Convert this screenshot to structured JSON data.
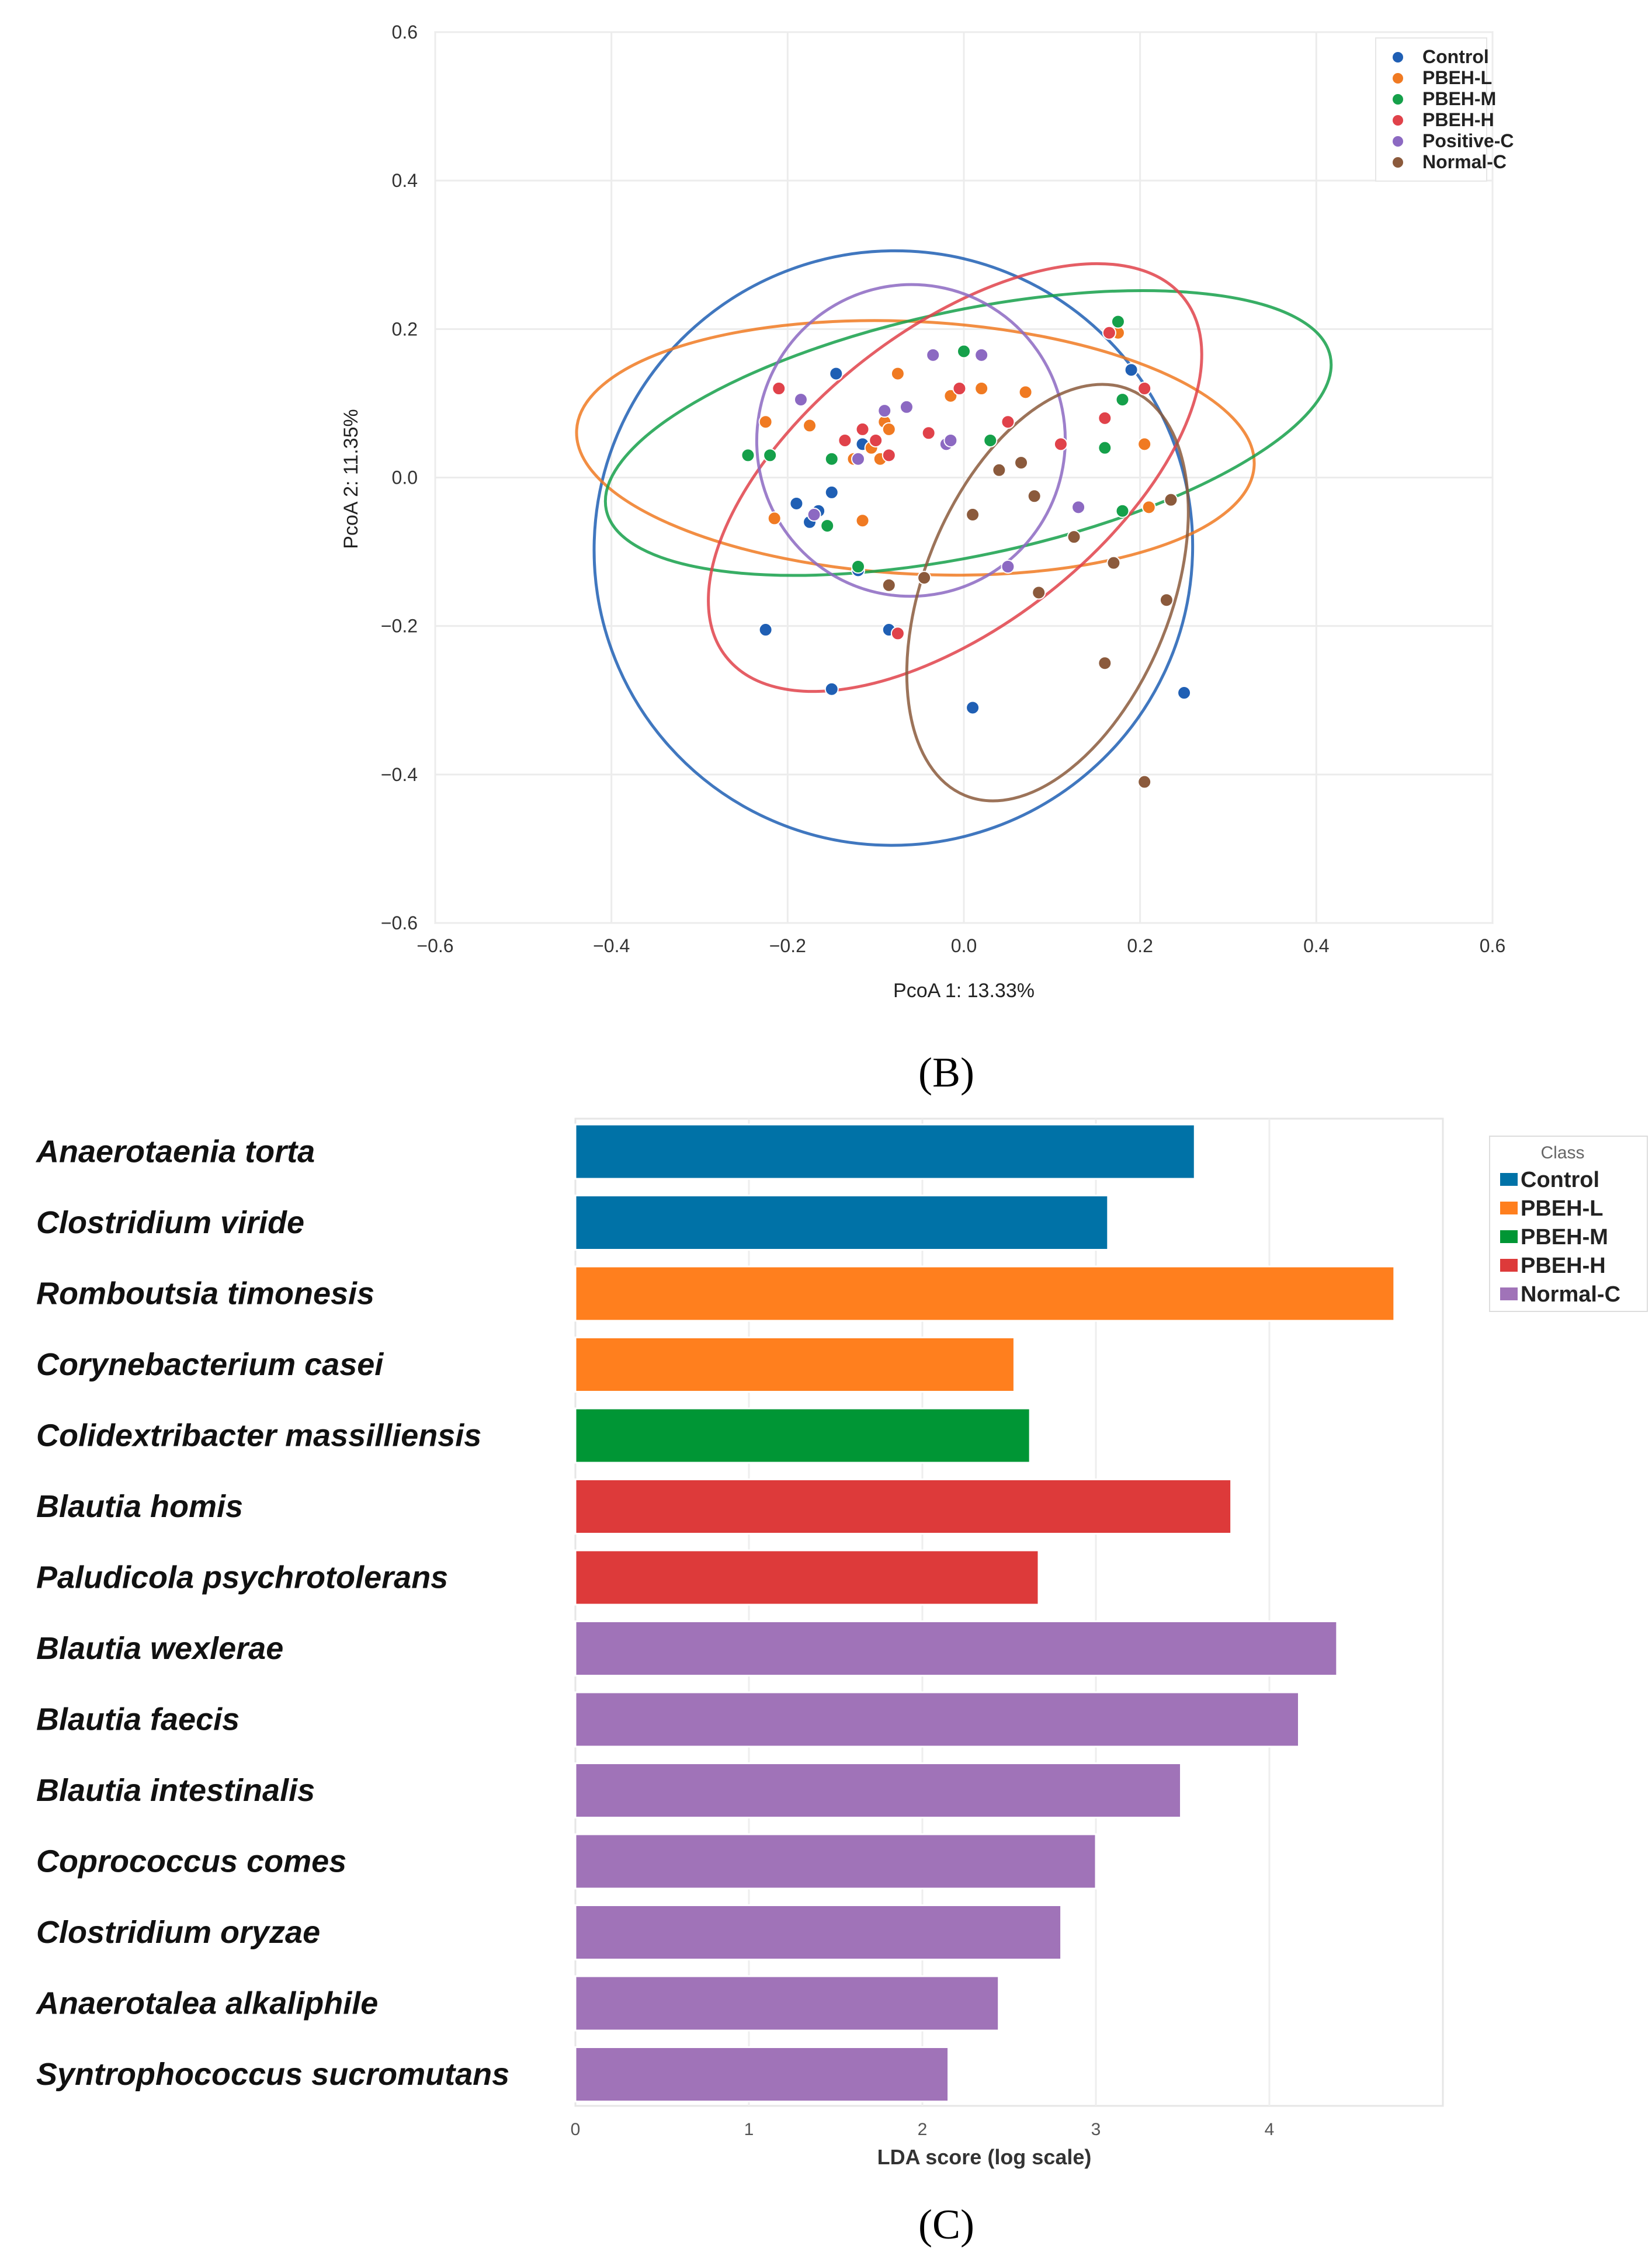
{
  "panel_b": {
    "caption": "(B)",
    "chart_data": {
      "type": "scatter",
      "xlabel": "PcoA 1: 13.33%",
      "ylabel": "PcoA 2: 11.35%",
      "xlim": [
        -0.6,
        0.6
      ],
      "ylim": [
        -0.6,
        0.6
      ],
      "xticks": [
        -0.6,
        -0.4,
        -0.2,
        0.0,
        0.2,
        0.4,
        0.6
      ],
      "yticks": [
        -0.6,
        -0.4,
        -0.2,
        0.0,
        0.2,
        0.4,
        0.6
      ],
      "xtick_labels": [
        "−0.6",
        "−0.4",
        "−0.2",
        "0.0",
        "0.2",
        "0.4",
        "0.6"
      ],
      "ytick_labels": [
        "−0.6",
        "−0.4",
        "−0.2",
        "0.0",
        "0.2",
        "0.4",
        "0.6"
      ],
      "grid": true,
      "legend_position": "top-right",
      "series": [
        {
          "name": "Control",
          "color": "#1f5fb4",
          "points": [
            [
              -0.145,
              0.14
            ],
            [
              -0.115,
              0.045
            ],
            [
              -0.15,
              -0.02
            ],
            [
              -0.19,
              -0.035
            ],
            [
              -0.165,
              -0.045
            ],
            [
              -0.175,
              -0.06
            ],
            [
              -0.12,
              -0.125
            ],
            [
              -0.225,
              -0.205
            ],
            [
              -0.15,
              -0.285
            ],
            [
              -0.085,
              -0.205
            ],
            [
              0.01,
              -0.31
            ],
            [
              0.25,
              -0.29
            ],
            [
              0.19,
              0.145
            ]
          ],
          "ellipse": {
            "center": [
              -0.08,
              -0.095
            ],
            "semi_axes": [
              0.34,
              0.4
            ],
            "angle_deg": 20
          }
        },
        {
          "name": "PBEH-L",
          "color": "#f07a22",
          "points": [
            [
              -0.225,
              0.075
            ],
            [
              -0.175,
              0.07
            ],
            [
              -0.215,
              -0.055
            ],
            [
              -0.115,
              -0.058
            ],
            [
              -0.125,
              0.025
            ],
            [
              -0.105,
              0.04
            ],
            [
              -0.095,
              0.025
            ],
            [
              -0.09,
              0.075
            ],
            [
              -0.085,
              0.065
            ],
            [
              -0.075,
              0.14
            ],
            [
              -0.015,
              0.11
            ],
            [
              0.02,
              0.12
            ],
            [
              0.07,
              0.115
            ],
            [
              0.175,
              0.195
            ],
            [
              0.205,
              0.045
            ],
            [
              0.21,
              -0.04
            ]
          ],
          "ellipse": {
            "center": [
              -0.055,
              0.04
            ],
            "semi_axes": [
              0.385,
              0.17
            ],
            "angle_deg": -3
          }
        },
        {
          "name": "PBEH-M",
          "color": "#15a04a",
          "points": [
            [
              -0.245,
              0.03
            ],
            [
              -0.22,
              0.03
            ],
            [
              -0.15,
              0.025
            ],
            [
              -0.155,
              -0.065
            ],
            [
              -0.12,
              -0.12
            ],
            [
              0.0,
              0.17
            ],
            [
              0.03,
              0.05
            ],
            [
              0.165,
              0.195
            ],
            [
              0.175,
              0.21
            ],
            [
              0.18,
              0.105
            ],
            [
              0.16,
              0.04
            ],
            [
              0.18,
              -0.045
            ]
          ],
          "ellipse": {
            "center": [
              0.005,
              0.06
            ],
            "semi_axes": [
              0.42,
              0.165
            ],
            "angle_deg": 12
          }
        },
        {
          "name": "PBEH-H",
          "color": "#e0424a",
          "points": [
            [
              -0.21,
              0.12
            ],
            [
              -0.135,
              0.05
            ],
            [
              -0.115,
              0.065
            ],
            [
              -0.1,
              0.05
            ],
            [
              -0.075,
              -0.21
            ],
            [
              -0.04,
              0.06
            ],
            [
              -0.005,
              0.12
            ],
            [
              0.05,
              0.075
            ],
            [
              0.11,
              0.045
            ],
            [
              0.16,
              0.08
            ],
            [
              0.165,
              0.195
            ],
            [
              0.205,
              0.12
            ],
            [
              -0.085,
              0.03
            ]
          ],
          "ellipse": {
            "center": [
              -0.01,
              0.0
            ],
            "semi_axes": [
              0.33,
              0.2
            ],
            "angle_deg": 38
          }
        },
        {
          "name": "Positive-C",
          "color": "#8c69c2",
          "points": [
            [
              -0.185,
              0.105
            ],
            [
              -0.17,
              -0.05
            ],
            [
              -0.12,
              0.025
            ],
            [
              -0.09,
              0.09
            ],
            [
              -0.065,
              0.095
            ],
            [
              -0.035,
              0.165
            ],
            [
              -0.02,
              0.045
            ],
            [
              -0.015,
              0.05
            ],
            [
              0.02,
              0.165
            ],
            [
              0.05,
              -0.12
            ],
            [
              0.13,
              -0.04
            ]
          ],
          "ellipse": {
            "center": [
              -0.06,
              0.05
            ],
            "semi_axes": [
              0.175,
              0.21
            ],
            "angle_deg": -10
          }
        },
        {
          "name": "Normal-C",
          "color": "#8b5a3c",
          "points": [
            [
              -0.085,
              -0.145
            ],
            [
              -0.045,
              -0.135
            ],
            [
              0.01,
              -0.05
            ],
            [
              0.04,
              0.01
            ],
            [
              0.065,
              0.02
            ],
            [
              0.08,
              -0.025
            ],
            [
              0.085,
              -0.155
            ],
            [
              0.125,
              -0.08
            ],
            [
              0.17,
              -0.115
            ],
            [
              0.235,
              -0.03
            ],
            [
              0.23,
              -0.165
            ],
            [
              0.16,
              -0.25
            ],
            [
              0.205,
              -0.41
            ]
          ],
          "ellipse": {
            "center": [
              0.095,
              -0.155
            ],
            "semi_axes": [
              0.14,
              0.295
            ],
            "angle_deg": -22
          }
        }
      ]
    }
  },
  "panel_c": {
    "caption": "(C)",
    "chart_data": {
      "type": "bar",
      "orientation": "horizontal",
      "xlabel": "LDA score (log scale)",
      "xlim": [
        0,
        5
      ],
      "xticks": [
        0,
        1,
        2,
        3,
        4
      ],
      "xtick_labels": [
        "0",
        "1",
        "2",
        "3",
        "4"
      ],
      "legend_title": "Class",
      "legend": [
        {
          "name": "Control",
          "color": "#0072a7"
        },
        {
          "name": "PBEH-L",
          "color": "#ff7f1e"
        },
        {
          "name": "PBEH-M",
          "color": "#009635"
        },
        {
          "name": "PBEH-H",
          "color": "#dd3a3a"
        },
        {
          "name": "Normal-C",
          "color": "#a073b8"
        }
      ],
      "bars": [
        {
          "label": "Anaerotaenia torta",
          "value": 3.57,
          "class": "Control"
        },
        {
          "label": "Clostridium viride",
          "value": 3.07,
          "class": "Control"
        },
        {
          "label": "Romboutsia timonesis",
          "value": 4.72,
          "class": "PBEH-L"
        },
        {
          "label": "Corynebacterium casei",
          "value": 2.53,
          "class": "PBEH-L"
        },
        {
          "label": "Colidextribacter massilliensis",
          "value": 2.62,
          "class": "PBEH-M"
        },
        {
          "label": "Blautia homis",
          "value": 3.78,
          "class": "PBEH-H"
        },
        {
          "label": "Paludicola psychrotolerans",
          "value": 2.67,
          "class": "PBEH-H"
        },
        {
          "label": "Blautia wexlerae",
          "value": 4.39,
          "class": "Normal-C"
        },
        {
          "label": "Blautia faecis",
          "value": 4.17,
          "class": "Normal-C"
        },
        {
          "label": "Blautia intestinalis",
          "value": 3.49,
          "class": "Normal-C"
        },
        {
          "label": "Coprococcus comes",
          "value": 3.0,
          "class": "Normal-C"
        },
        {
          "label": "Clostridium oryzae",
          "value": 2.8,
          "class": "Normal-C"
        },
        {
          "label": "Anaerotalea alkaliphile",
          "value": 2.44,
          "class": "Normal-C"
        },
        {
          "label": "Syntrophococcus sucromutans",
          "value": 2.15,
          "class": "Normal-C"
        }
      ]
    }
  }
}
